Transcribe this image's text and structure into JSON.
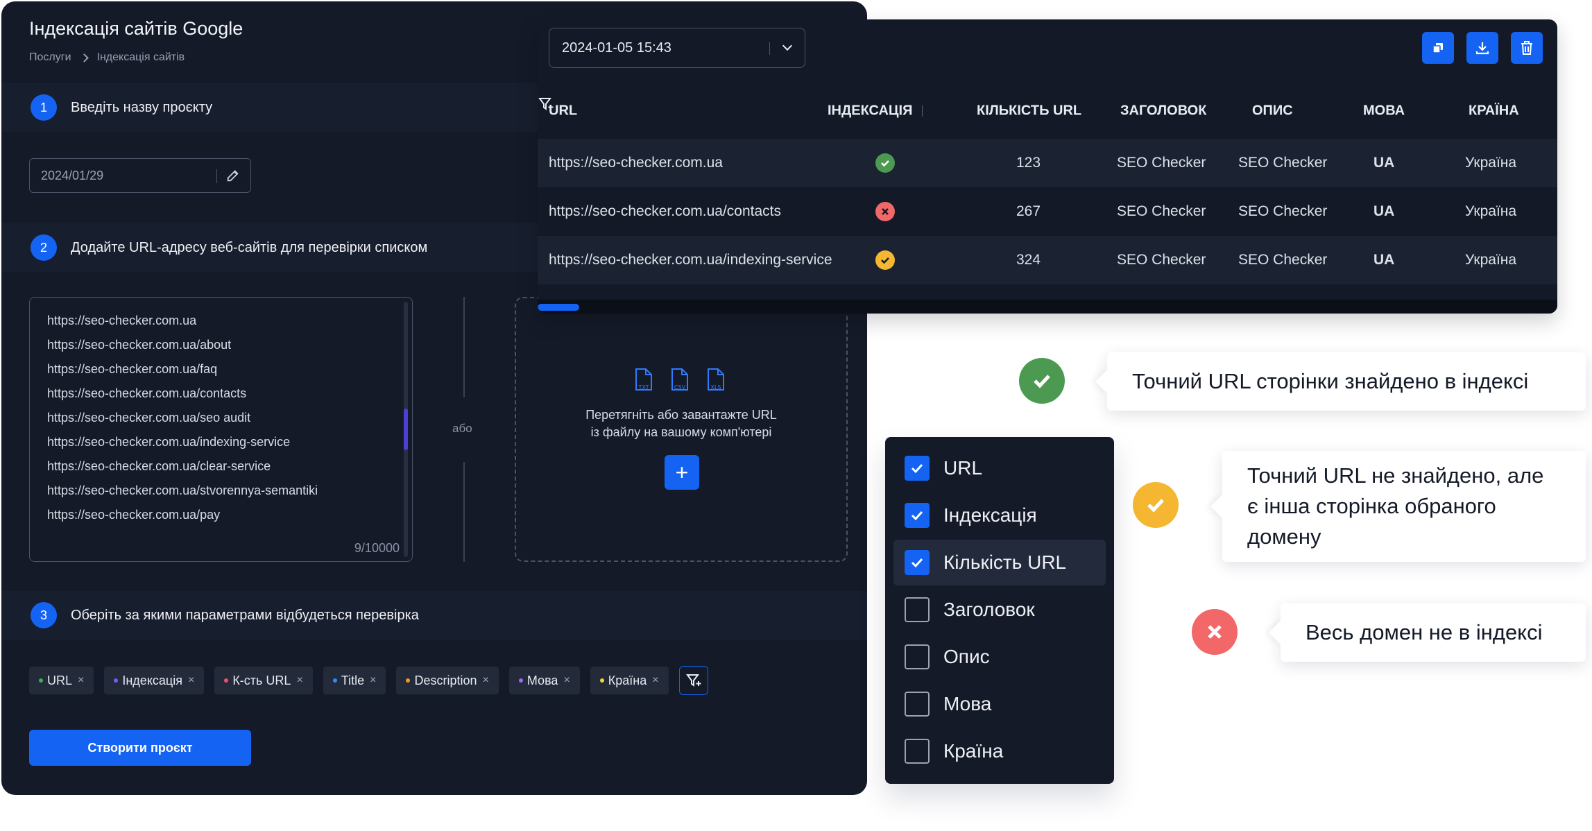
{
  "page": {
    "title": "Індексація сайтів Google",
    "breadcrumb": [
      "Послуги",
      "Індексація сайтів"
    ]
  },
  "steps": [
    {
      "num": "1",
      "text": "Введіть назву проєкту"
    },
    {
      "num": "2",
      "text": "Додайте URL-адресу веб-сайтів для перевірки списком"
    },
    {
      "num": "3",
      "text": "Оберіть за якими параметрами відбудеться перевірка"
    }
  ],
  "project_name": {
    "value": "2024/01/29"
  },
  "url_input": {
    "urls": [
      "https://seo-checker.com.ua",
      "https://seo-checker.com.ua/about",
      "https://seo-checker.com.ua/faq",
      "https://seo-checker.com.ua/contacts",
      "https://seo-checker.com.ua/seo audit",
      "https://seo-checker.com.ua/indexing-service",
      "https://seo-checker.com.ua/clear-service",
      "https://seo-checker.com.ua/stvorennya-semantiki",
      "https://seo-checker.com.ua/pay"
    ],
    "counter": "9/10000"
  },
  "or_label": "або",
  "upload": {
    "file_types": [
      "TXT",
      "CSV",
      "XLS"
    ],
    "text_line1": "Перетягніть або завантажте URL",
    "text_line2": "із файлу на вашому комп'ютері",
    "plus": "+"
  },
  "tags": [
    {
      "label": "URL",
      "color": "#3fae5a"
    },
    {
      "label": "Індексація",
      "color": "#7a5cf5"
    },
    {
      "label": "К-сть URL",
      "color": "#f0506e"
    },
    {
      "label": "Title",
      "color": "#2f8cff"
    },
    {
      "label": "Description",
      "color": "#f59a23"
    },
    {
      "label": "Мова",
      "color": "#9b6cf5"
    },
    {
      "label": "Країна",
      "color": "#f5d623"
    }
  ],
  "tag_remove": "×",
  "create_button": "Створити проєкт",
  "results": {
    "date": "2024-01-05 15:43",
    "columns": [
      "URL",
      "ІНДЕКСАЦІЯ",
      "КІЛЬКІСТЬ URL",
      "ЗАГОЛОВОК",
      "ОПИС",
      "МОВА",
      "КРАЇНА"
    ],
    "rows": [
      {
        "url": "https://seo-checker.com.ua",
        "status": "indexed",
        "count": "123",
        "title": "SEO Checker",
        "desc": "SEO Checker",
        "lang": "UA",
        "country": "Україна"
      },
      {
        "url": "https://seo-checker.com.ua/contacts",
        "status": "not-indexed",
        "count": "267",
        "title": "SEO Checker",
        "desc": "SEO Checker",
        "lang": "UA",
        "country": "Україна"
      },
      {
        "url": "https://seo-checker.com.ua/indexing-service",
        "status": "partial",
        "count": "324",
        "title": "SEO Checker",
        "desc": "SEO Checker",
        "lang": "UA",
        "country": "Україна"
      }
    ]
  },
  "legend": {
    "indexed": "Точний URL сторінки знайдено в індексі",
    "partial_lines": [
      "Точний URL не знайдено, але",
      "є інша сторінка обраного",
      "домену"
    ],
    "not_indexed": "Весь домен не в індексі"
  },
  "column_menu": [
    {
      "label": "URL",
      "checked": true
    },
    {
      "label": "Індексація",
      "checked": true
    },
    {
      "label": "Кількість URL",
      "checked": true
    },
    {
      "label": "Заголовок",
      "checked": false
    },
    {
      "label": "Опис",
      "checked": false
    },
    {
      "label": "Мова",
      "checked": false
    },
    {
      "label": "Країна",
      "checked": false
    }
  ],
  "colors": {
    "accent": "#1463f3",
    "success": "#4c9a52",
    "warning": "#f5b731",
    "error": "#f26767"
  },
  "icons": [
    "chevron-right-icon",
    "edit-icon",
    "file-txt-icon",
    "file-csv-icon",
    "file-xls-icon",
    "filter-add-icon",
    "chevron-down-icon",
    "copy-icon",
    "download-icon",
    "trash-icon",
    "check-icon",
    "close-icon"
  ]
}
